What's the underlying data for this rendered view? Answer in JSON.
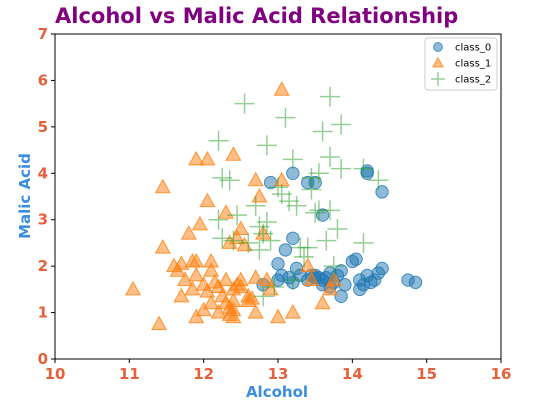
{
  "chart_data": {
    "type": "scatter",
    "title": "Alcohol vs Malic Acid Relationship",
    "xlabel": "Alcohol",
    "ylabel": "Malic Acid",
    "xlim": [
      10,
      16
    ],
    "ylim": [
      0,
      7
    ],
    "xticks": [
      "10",
      "11",
      "12",
      "13",
      "14",
      "15",
      "16"
    ],
    "yticks": [
      "0",
      "1",
      "2",
      "3",
      "4",
      "5",
      "6",
      "7"
    ],
    "grid": false,
    "legend_position": "top-right",
    "colors": {
      "title": "#800080",
      "axis_label": "#3b8de0",
      "tick_label": "#e5603b",
      "class_0": "#1f77b4",
      "class_1": "#ff7f0e",
      "class_2": "#2ca02c"
    },
    "series": [
      {
        "name": "class_0",
        "marker": "circle",
        "points": [
          [
            12.9,
            3.8
          ],
          [
            13.2,
            4.0
          ],
          [
            13.4,
            3.8
          ],
          [
            13.5,
            3.8
          ],
          [
            13.6,
            3.1
          ],
          [
            14.2,
            4.0
          ],
          [
            14.2,
            4.05
          ],
          [
            14.4,
            3.6
          ],
          [
            13.2,
            2.6
          ],
          [
            13.1,
            2.35
          ],
          [
            12.8,
            1.6
          ],
          [
            13.0,
            2.05
          ],
          [
            13.0,
            1.7
          ],
          [
            13.05,
            1.8
          ],
          [
            13.15,
            1.75
          ],
          [
            13.2,
            1.65
          ],
          [
            13.25,
            1.95
          ],
          [
            13.3,
            1.8
          ],
          [
            13.4,
            1.7
          ],
          [
            13.45,
            1.8
          ],
          [
            13.5,
            1.8
          ],
          [
            13.55,
            1.75
          ],
          [
            13.6,
            1.7
          ],
          [
            13.65,
            1.75
          ],
          [
            13.7,
            1.85
          ],
          [
            13.75,
            1.65
          ],
          [
            13.8,
            1.8
          ],
          [
            13.85,
            1.9
          ],
          [
            13.9,
            1.6
          ],
          [
            13.85,
            1.35
          ],
          [
            14.0,
            2.1
          ],
          [
            14.05,
            2.15
          ],
          [
            14.1,
            1.7
          ],
          [
            14.15,
            1.6
          ],
          [
            14.2,
            1.8
          ],
          [
            14.25,
            1.65
          ],
          [
            14.3,
            1.7
          ],
          [
            14.35,
            1.85
          ],
          [
            14.4,
            1.95
          ],
          [
            14.75,
            1.7
          ],
          [
            14.85,
            1.65
          ],
          [
            13.6,
            1.6
          ],
          [
            13.7,
            1.55
          ],
          [
            13.5,
            1.75
          ],
          [
            14.1,
            1.5
          ]
        ]
      },
      {
        "name": "class_1",
        "marker": "triangle",
        "points": [
          [
            11.05,
            1.5
          ],
          [
            11.4,
            0.75
          ],
          [
            11.45,
            3.7
          ],
          [
            11.45,
            2.4
          ],
          [
            11.6,
            2.0
          ],
          [
            11.65,
            1.9
          ],
          [
            11.7,
            2.05
          ],
          [
            11.7,
            1.35
          ],
          [
            11.75,
            1.7
          ],
          [
            11.8,
            2.7
          ],
          [
            11.85,
            2.1
          ],
          [
            11.85,
            1.5
          ],
          [
            11.9,
            2.1
          ],
          [
            11.9,
            1.8
          ],
          [
            11.9,
            0.9
          ],
          [
            11.95,
            2.9
          ],
          [
            11.9,
            4.3
          ],
          [
            12.0,
            1.6
          ],
          [
            12.0,
            1.05
          ],
          [
            12.05,
            3.4
          ],
          [
            12.05,
            4.3
          ],
          [
            12.05,
            1.45
          ],
          [
            12.1,
            2.1
          ],
          [
            12.1,
            1.9
          ],
          [
            12.1,
            1.2
          ],
          [
            12.15,
            1.65
          ],
          [
            12.2,
            1.55
          ],
          [
            12.2,
            1.0
          ],
          [
            12.25,
            1.35
          ],
          [
            12.3,
            3.15
          ],
          [
            12.3,
            1.7
          ],
          [
            12.3,
            1.2
          ],
          [
            12.35,
            2.5
          ],
          [
            12.35,
            1.1
          ],
          [
            12.35,
            0.95
          ],
          [
            12.4,
            1.5
          ],
          [
            12.4,
            1.25
          ],
          [
            12.4,
            1.05
          ],
          [
            12.4,
            0.9
          ],
          [
            12.4,
            4.4
          ],
          [
            12.45,
            2.6
          ],
          [
            12.45,
            1.6
          ],
          [
            12.5,
            1.55
          ],
          [
            12.5,
            2.8
          ],
          [
            12.5,
            1.7
          ],
          [
            12.55,
            2.45
          ],
          [
            12.6,
            1.35
          ],
          [
            12.6,
            1.25
          ],
          [
            12.65,
            1.3
          ],
          [
            12.7,
            1.75
          ],
          [
            12.7,
            3.85
          ],
          [
            12.7,
            1.0
          ],
          [
            12.75,
            3.5
          ],
          [
            12.8,
            2.7
          ],
          [
            12.85,
            1.7
          ],
          [
            12.9,
            1.5
          ],
          [
            13.0,
            0.9
          ],
          [
            13.05,
            3.85
          ],
          [
            13.05,
            5.8
          ],
          [
            13.2,
            1.0
          ],
          [
            13.4,
            2.0
          ],
          [
            13.45,
            1.7
          ],
          [
            13.6,
            1.2
          ],
          [
            13.7,
            1.5
          ],
          [
            13.75,
            1.7
          ]
        ]
      },
      {
        "name": "class_2",
        "marker": "plus",
        "points": [
          [
            12.2,
            4.7
          ],
          [
            12.55,
            5.5
          ],
          [
            12.25,
            3.9
          ],
          [
            12.35,
            3.85
          ],
          [
            12.2,
            3.0
          ],
          [
            12.45,
            3.1
          ],
          [
            12.25,
            2.6
          ],
          [
            12.4,
            2.55
          ],
          [
            12.6,
            2.5
          ],
          [
            12.7,
            3.3
          ],
          [
            12.75,
            2.85
          ],
          [
            12.75,
            2.35
          ],
          [
            12.8,
            2.7
          ],
          [
            12.85,
            2.95
          ],
          [
            12.85,
            4.6
          ],
          [
            12.9,
            2.55
          ],
          [
            12.95,
            1.55
          ],
          [
            12.8,
            1.35
          ],
          [
            13.0,
            3.7
          ],
          [
            13.05,
            3.55
          ],
          [
            13.1,
            5.2
          ],
          [
            13.15,
            3.4
          ],
          [
            13.2,
            4.3
          ],
          [
            13.2,
            1.7
          ],
          [
            13.25,
            3.3
          ],
          [
            13.3,
            2.4
          ],
          [
            13.35,
            2.2
          ],
          [
            13.4,
            2.4
          ],
          [
            13.45,
            3.65
          ],
          [
            13.45,
            3.9
          ],
          [
            13.5,
            3.15
          ],
          [
            13.55,
            3.2
          ],
          [
            13.55,
            4.0
          ],
          [
            13.6,
            4.9
          ],
          [
            13.65,
            2.55
          ],
          [
            13.7,
            5.65
          ],
          [
            13.7,
            4.35
          ],
          [
            13.7,
            3.2
          ],
          [
            13.75,
            2.0
          ],
          [
            13.8,
            2.8
          ],
          [
            13.85,
            4.1
          ],
          [
            13.85,
            5.05
          ],
          [
            14.15,
            4.1
          ],
          [
            14.15,
            2.5
          ],
          [
            14.35,
            3.85
          ]
        ]
      }
    ]
  }
}
